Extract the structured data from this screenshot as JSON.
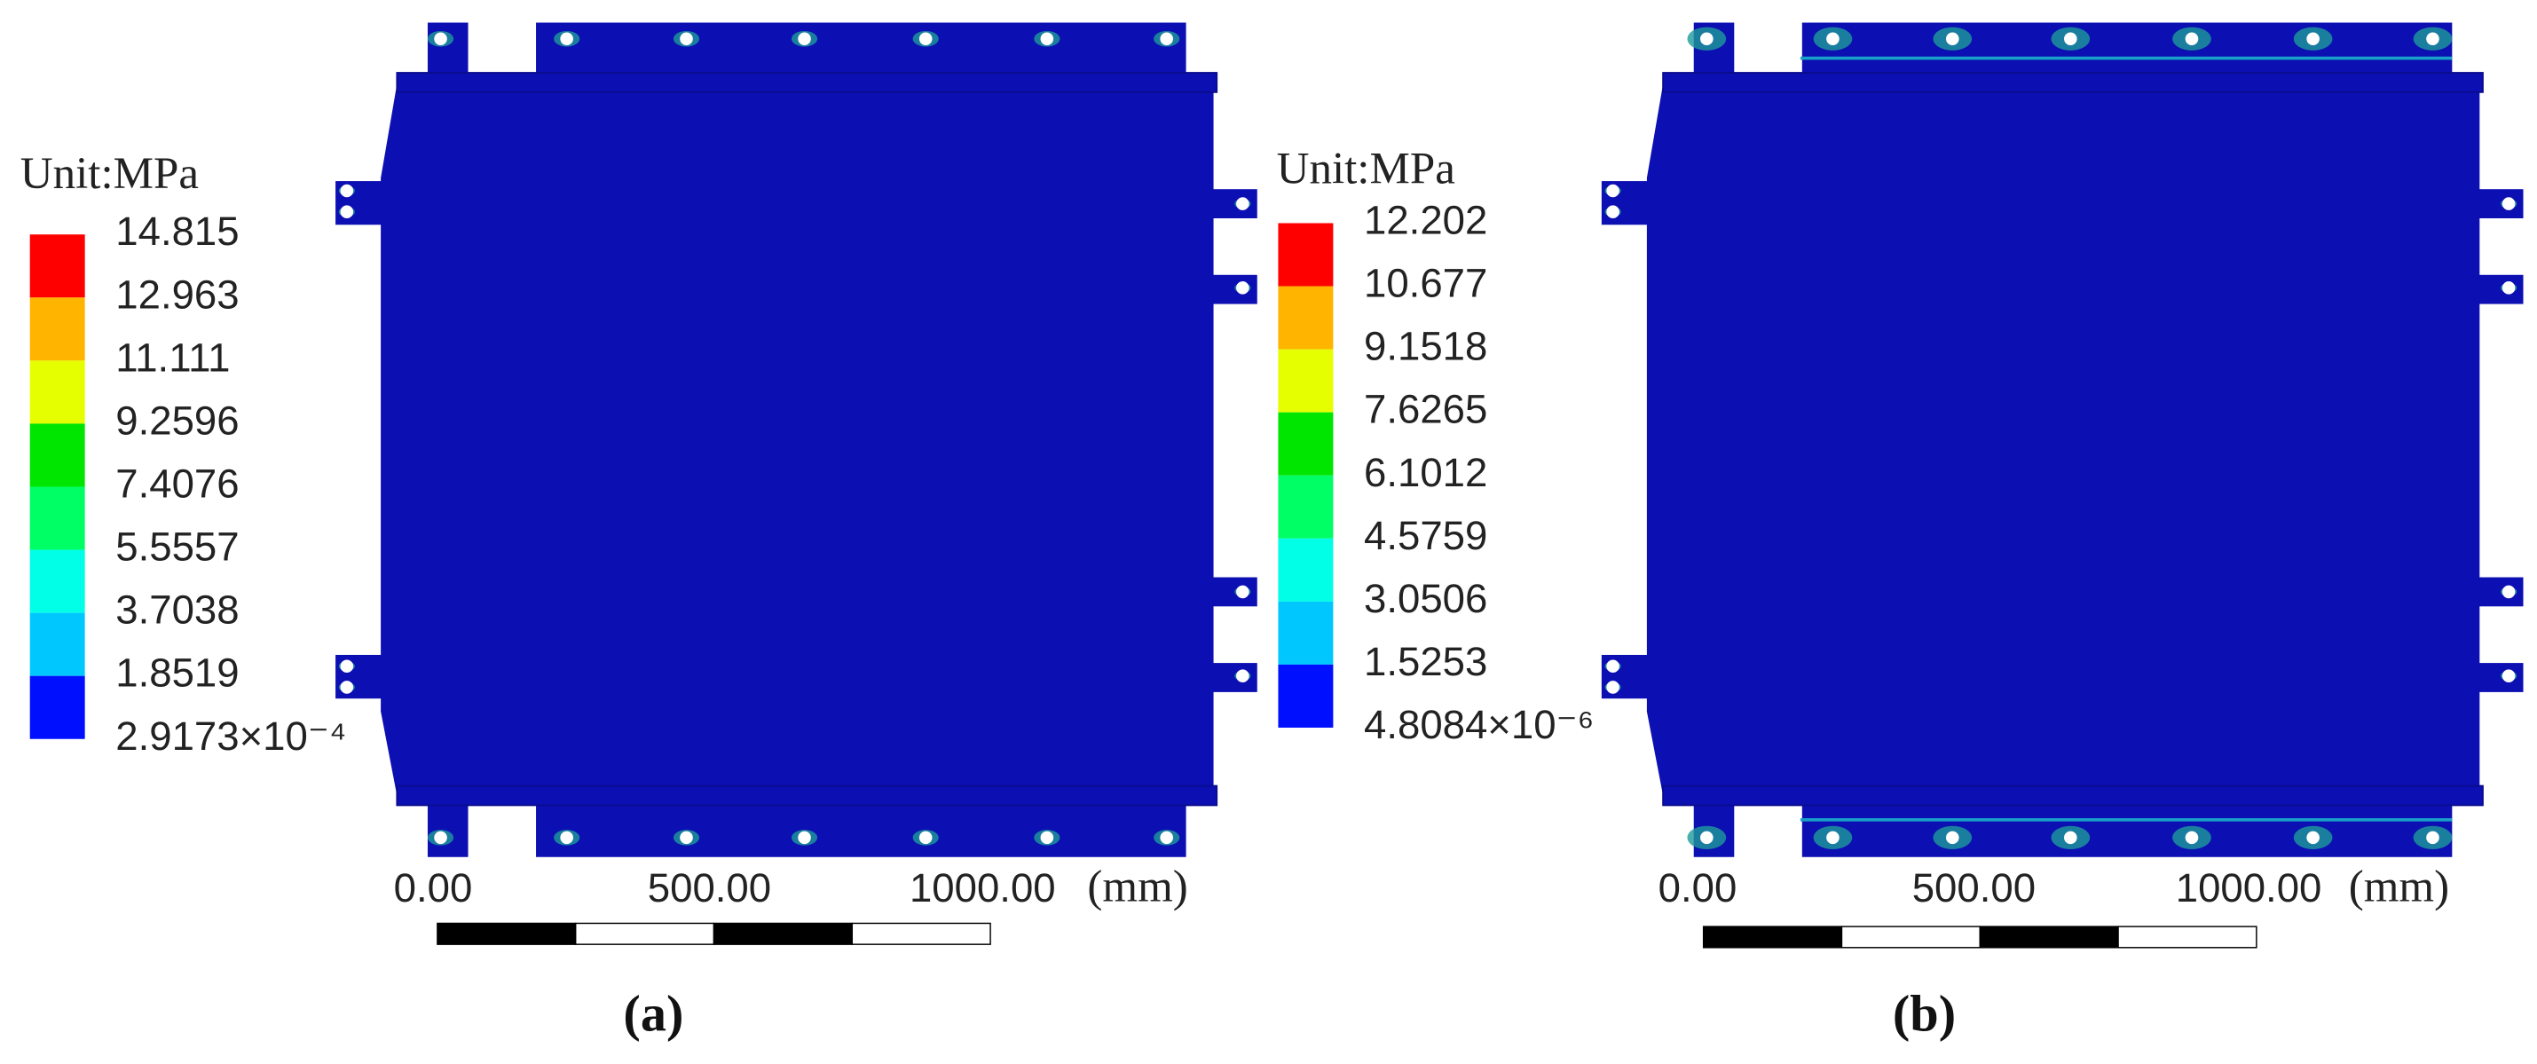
{
  "panels": [
    {
      "legend": {
        "title": "Unit:MPa",
        "labels": [
          "14.815",
          "12.963",
          "11.111",
          "9.2596",
          "7.4076",
          "5.5557",
          "3.7038",
          "1.8519",
          "2.9173×10⁻⁴"
        ]
      },
      "scale_bar": {
        "labels": [
          "0.00",
          "500.00",
          "1000.00"
        ],
        "unit": "(mm)"
      },
      "caption": "(a)"
    },
    {
      "legend": {
        "title": "Unit:MPa",
        "labels": [
          "12.202",
          "10.677",
          "9.1518",
          "7.6265",
          "6.1012",
          "4.5759",
          "3.0506",
          "1.5253",
          "4.8084×10⁻⁶"
        ]
      },
      "scale_bar": {
        "labels": [
          "0.00",
          "500.00",
          "1000.00"
        ],
        "unit": "(mm)"
      },
      "caption": "(b)"
    }
  ]
}
